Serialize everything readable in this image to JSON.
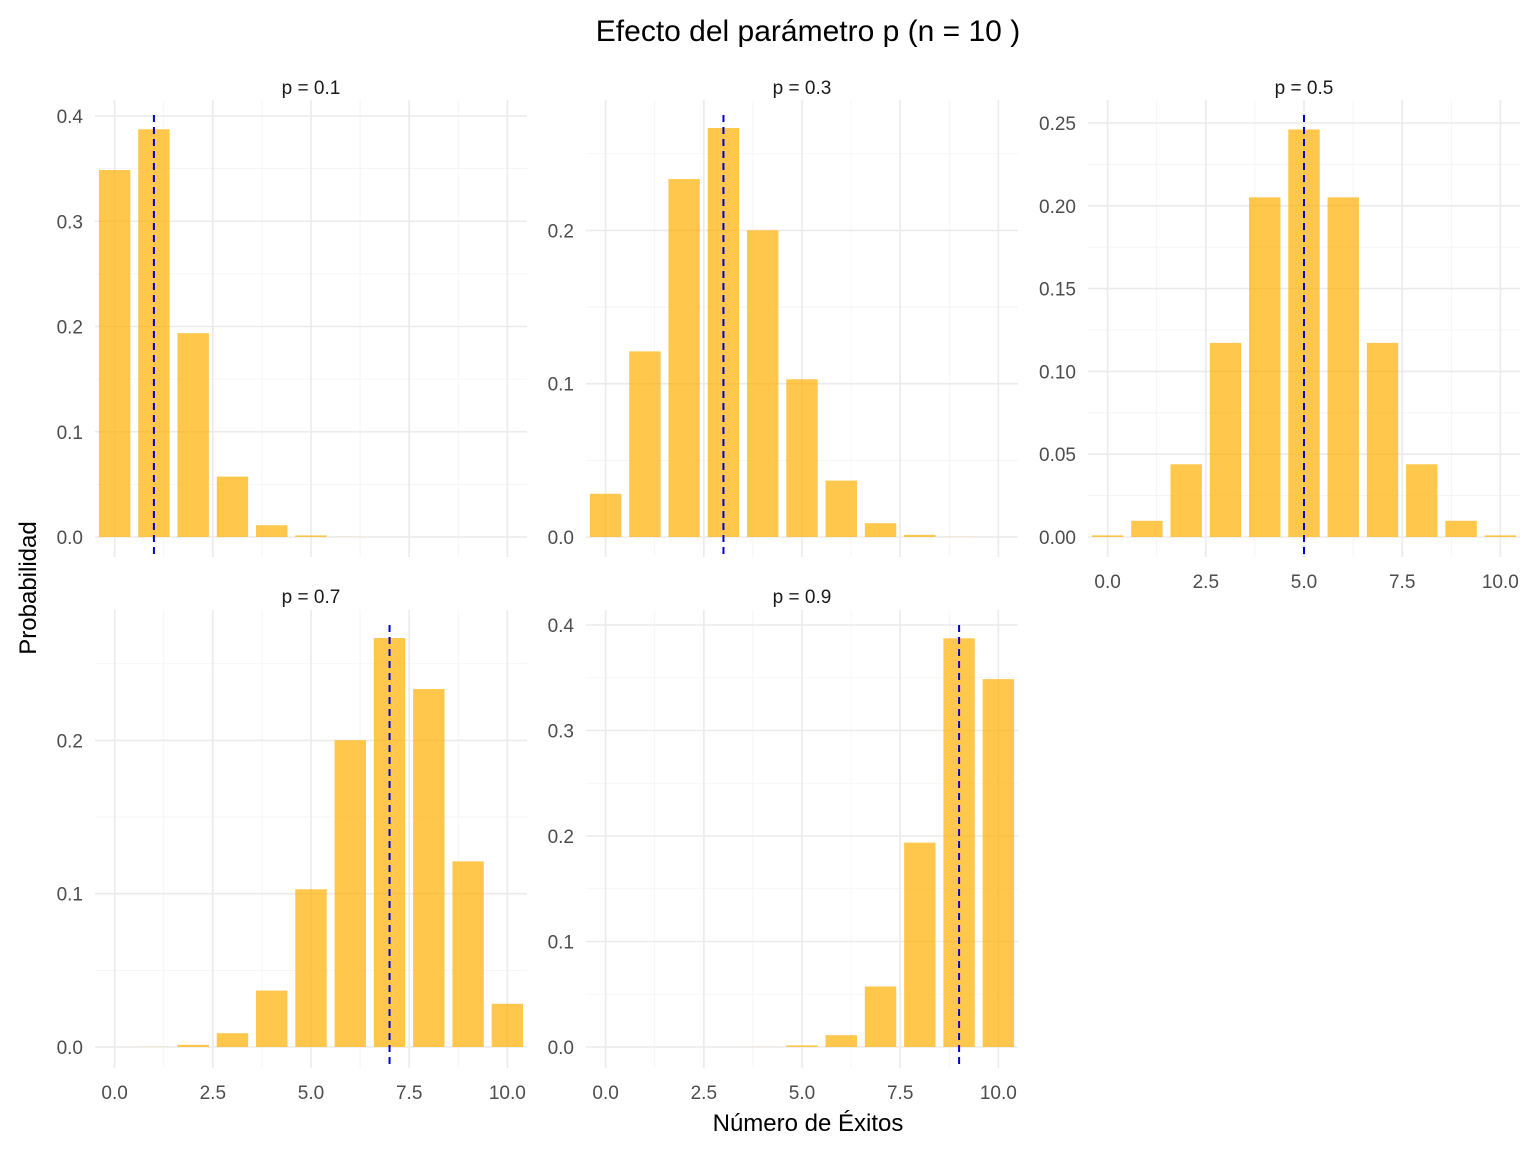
{
  "title": "Efecto del parámetro p (n = 10 )",
  "xlabel": "Número de Éxitos",
  "ylabel": "Probabilidad",
  "colors": {
    "bar": "#FFB100",
    "bar_opacity": 0.7,
    "mean_line": "#0000CC"
  },
  "chart_data": [
    {
      "type": "bar",
      "label": "p = 0.1",
      "x": [
        0,
        1,
        2,
        3,
        4,
        5,
        6,
        7,
        8,
        9,
        10
      ],
      "values": [
        0.3487,
        0.3874,
        0.1937,
        0.0574,
        0.0112,
        0.0015,
        0.0001,
        0.0,
        0.0,
        0.0,
        0.0
      ],
      "mean": 1,
      "ylim": [
        0,
        0.4
      ],
      "yticks": [
        "0.0",
        "0.1",
        "0.2",
        "0.3",
        "0.4"
      ],
      "xticks": [
        "0.0",
        "2.5",
        "5.0",
        "7.5",
        "10.0"
      ],
      "show_xticks": false
    },
    {
      "type": "bar",
      "label": "p = 0.3",
      "x": [
        0,
        1,
        2,
        3,
        4,
        5,
        6,
        7,
        8,
        9,
        10
      ],
      "values": [
        0.0282,
        0.1211,
        0.2335,
        0.2668,
        0.2001,
        0.1029,
        0.0368,
        0.009,
        0.0014,
        0.0001,
        0.0
      ],
      "mean": 3,
      "ylim": [
        0,
        0.2668
      ],
      "yticks": [
        "0.0",
        "0.1",
        "0.2"
      ],
      "xticks": [
        "0.0",
        "2.5",
        "5.0",
        "7.5",
        "10.0"
      ],
      "show_xticks": false
    },
    {
      "type": "bar",
      "label": "p = 0.5",
      "x": [
        0,
        1,
        2,
        3,
        4,
        5,
        6,
        7,
        8,
        9,
        10
      ],
      "values": [
        0.001,
        0.0098,
        0.0439,
        0.1172,
        0.2051,
        0.2461,
        0.2051,
        0.1172,
        0.0439,
        0.0098,
        0.001
      ],
      "mean": 5,
      "ylim": [
        0,
        0.25
      ],
      "yticks": [
        "0.00",
        "0.05",
        "0.10",
        "0.15",
        "0.20",
        "0.25"
      ],
      "xticks": [
        "0.0",
        "2.5",
        "5.0",
        "7.5",
        "10.0"
      ],
      "show_xticks": true
    },
    {
      "type": "bar",
      "label": "p = 0.7",
      "x": [
        0,
        1,
        2,
        3,
        4,
        5,
        6,
        7,
        8,
        9,
        10
      ],
      "values": [
        0.0,
        0.0001,
        0.0014,
        0.009,
        0.0368,
        0.1029,
        0.2001,
        0.2668,
        0.2335,
        0.1211,
        0.0282
      ],
      "mean": 7,
      "ylim": [
        0,
        0.2668
      ],
      "yticks": [
        "0.0",
        "0.1",
        "0.2"
      ],
      "xticks": [
        "0.0",
        "2.5",
        "5.0",
        "7.5",
        "10.0"
      ],
      "show_xticks": true
    },
    {
      "type": "bar",
      "label": "p = 0.9",
      "x": [
        0,
        1,
        2,
        3,
        4,
        5,
        6,
        7,
        8,
        9,
        10
      ],
      "values": [
        0.0,
        0.0,
        0.0,
        0.0,
        0.0001,
        0.0015,
        0.0112,
        0.0574,
        0.1937,
        0.3874,
        0.3487
      ],
      "mean": 9,
      "ylim": [
        0,
        0.4
      ],
      "yticks": [
        "0.0",
        "0.1",
        "0.2",
        "0.3",
        "0.4"
      ],
      "xticks": [
        "0.0",
        "2.5",
        "5.0",
        "7.5",
        "10.0"
      ],
      "show_xticks": true
    }
  ]
}
